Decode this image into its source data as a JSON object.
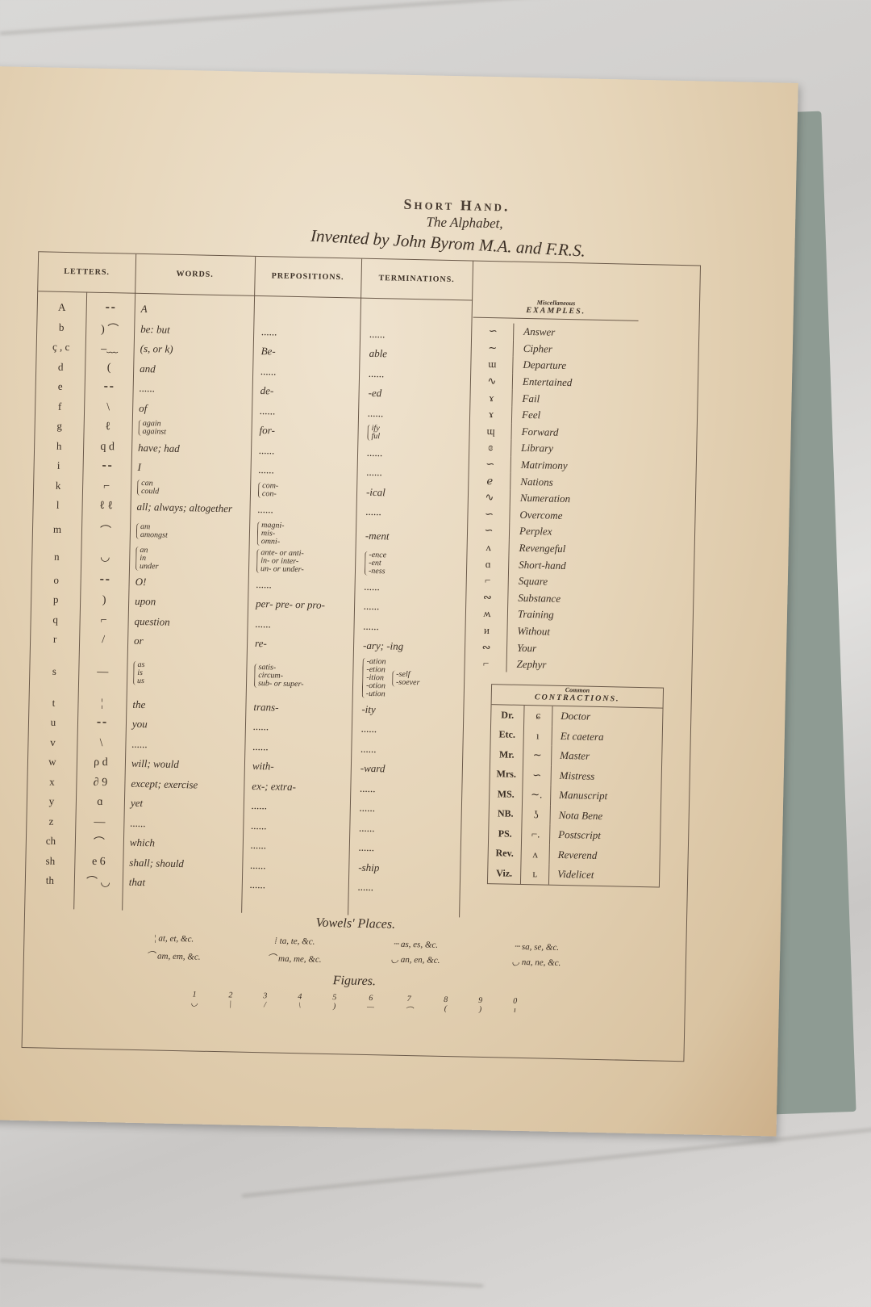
{
  "title": {
    "main": "Short Hand.",
    "subtitle": "The Alphabet,",
    "author": "Invented by John Byrom M.A. and F.R.S."
  },
  "headers": {
    "letters": "LETTERS.",
    "words": "WORDS.",
    "prepositions": "PREPOSITIONS.",
    "terminations": "TERMINATIONS."
  },
  "rows": [
    {
      "letter": "A",
      "words": "A",
      "prep": "",
      "term": ""
    },
    {
      "letter": "b",
      "words": "be: but",
      "prep": "......",
      "term": "......"
    },
    {
      "letter": "ç , c",
      "words": "(s, or k)",
      "prep": "Be-",
      "term": "able"
    },
    {
      "letter": "d",
      "words": "and",
      "prep": "......",
      "term": "......"
    },
    {
      "letter": "e",
      "words": "......",
      "prep": "de-",
      "term": "-ed"
    },
    {
      "letter": "f",
      "words": "of",
      "prep": "......",
      "term": "......"
    },
    {
      "letter": "g",
      "words": [
        "again",
        "against"
      ],
      "prep": "for-",
      "term": [
        "ify",
        "ful"
      ]
    },
    {
      "letter": "h",
      "words": "have; had",
      "prep": "......",
      "term": "......"
    },
    {
      "letter": "i",
      "words": "I",
      "prep": "......",
      "term": "......"
    },
    {
      "letter": "k",
      "words": [
        "can",
        "could"
      ],
      "prep": [
        "com-",
        "con-"
      ],
      "term": "-ical"
    },
    {
      "letter": "l",
      "words": "all; always; altogether",
      "prep": "......",
      "term": "......"
    },
    {
      "letter": "m",
      "words": [
        "am",
        "amongst"
      ],
      "prep": [
        "magni-",
        "mis-",
        "omni-"
      ],
      "term": "-ment"
    },
    {
      "letter": "n",
      "words": [
        "an",
        "in",
        "under"
      ],
      "prep": [
        "ante- or anti-",
        "in- or inter-",
        "un- or under-"
      ],
      "term": [
        "-ence",
        "-ent",
        "-ness"
      ]
    },
    {
      "letter": "o",
      "words": "O!",
      "prep": "......",
      "term": "......"
    },
    {
      "letter": "p",
      "words": "upon",
      "prep": "per- pre- or pro-",
      "term": "......"
    },
    {
      "letter": "q",
      "words": "question",
      "prep": "......",
      "term": "......"
    },
    {
      "letter": "r",
      "words": "or",
      "prep": "re-",
      "term": "-ary; -ing"
    },
    {
      "letter": "s",
      "words": [
        "as",
        "is",
        "us"
      ],
      "prep": [
        "satis-",
        "circum-",
        "sub- or super-"
      ],
      "term": [
        "-ation",
        "-etion",
        "-ition",
        "-otion",
        "-ution"
      ],
      "term2": [
        "-self",
        "-soever"
      ]
    },
    {
      "letter": "t",
      "words": "the",
      "prep": "trans-",
      "term": "-ity"
    },
    {
      "letter": "u",
      "words": "you",
      "prep": "......",
      "term": "......"
    },
    {
      "letter": "v",
      "words": "......",
      "prep": "......",
      "term": "......"
    },
    {
      "letter": "w",
      "words": "will; would",
      "prep": "with-",
      "term": "-ward"
    },
    {
      "letter": "x",
      "words": "except; exercise",
      "prep": "ex-; extra-",
      "term": "......"
    },
    {
      "letter": "y",
      "words": "yet",
      "prep": "......",
      "term": "......"
    },
    {
      "letter": "z",
      "words": "......",
      "prep": "......",
      "term": "......"
    },
    {
      "letter": "ch",
      "words": "which",
      "prep": "......",
      "term": "......"
    },
    {
      "letter": "sh",
      "words": "shall; should",
      "prep": "......",
      "term": "-ship"
    },
    {
      "letter": "th",
      "words": "that",
      "prep": "......",
      "term": "......"
    }
  ],
  "misc": {
    "caption": "Miscellaneous",
    "heading": "EXAMPLES.",
    "items": [
      "Answer",
      "Cipher",
      "Departure",
      "Entertained",
      "Fail",
      "Feel",
      "Forward",
      "Library",
      "Matrimony",
      "Nations",
      "Numeration",
      "Overcome",
      "Perplex",
      "Revengeful",
      "Short-hand",
      "Square",
      "Substance",
      "Training",
      "Without",
      "Your",
      "Zephyr"
    ]
  },
  "contractions": {
    "caption": "Common",
    "heading": "CONTRACTIONS.",
    "items": [
      {
        "abbr": "Dr.",
        "word": "Doctor"
      },
      {
        "abbr": "Etc.",
        "word": "Et caetera"
      },
      {
        "abbr": "Mr.",
        "word": "Master"
      },
      {
        "abbr": "Mrs.",
        "word": "Mistress"
      },
      {
        "abbr": "MS.",
        "word": "Manuscript"
      },
      {
        "abbr": "NB.",
        "word": "Nota Bene"
      },
      {
        "abbr": "PS.",
        "word": "Postscript"
      },
      {
        "abbr": "Rev.",
        "word": "Reverend"
      },
      {
        "abbr": "Viz.",
        "word": "Videlicet"
      }
    ]
  },
  "vowels": {
    "title": "Vowels' Places.",
    "items": [
      "at, et, &c.",
      "ta, te, &c.",
      "as, es, &c.",
      "sa, se, &c.",
      "am, em, &c.",
      "ma, me, &c.",
      "an, en, &c.",
      "na, ne, &c."
    ]
  },
  "figures": {
    "title": "Figures.",
    "digits": [
      "1",
      "2",
      "3",
      "4",
      "5",
      "6",
      "7",
      "8",
      "9",
      "0"
    ]
  }
}
